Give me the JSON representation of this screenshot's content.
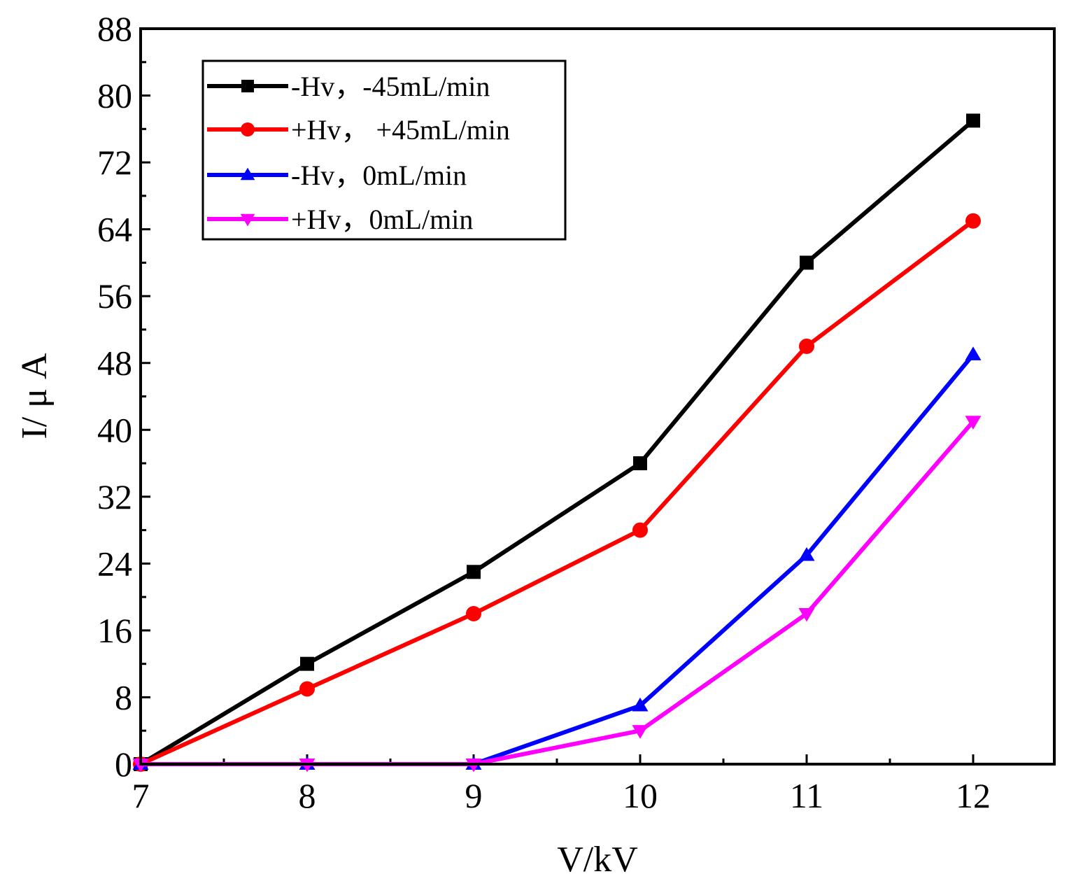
{
  "chart_data": {
    "type": "line",
    "title": "",
    "xlabel": "V/kV",
    "ylabel": "I/ μ A",
    "xlim": [
      7,
      12.5
    ],
    "ylim": [
      0,
      88
    ],
    "x_ticks": [
      7,
      8,
      9,
      10,
      11,
      12
    ],
    "y_ticks": [
      0,
      8,
      16,
      24,
      32,
      40,
      48,
      56,
      64,
      72,
      80,
      88
    ],
    "grid": false,
    "legend_position": "top-left",
    "x": [
      7,
      8,
      9,
      10,
      11,
      12
    ],
    "series": [
      {
        "name": "-Hv，-45mL/min",
        "color": "#000000",
        "marker": "square",
        "values": [
          0,
          12,
          23,
          36,
          60,
          77
        ]
      },
      {
        "name": "+Hv，  +45mL/min",
        "color": "#ff0000",
        "marker": "circle",
        "values": [
          0,
          9,
          18,
          28,
          50,
          65
        ]
      },
      {
        "name": "-Hv，0mL/min",
        "color": "#0000ff",
        "marker": "triangle-up",
        "values": [
          0,
          0,
          0,
          7,
          25,
          49
        ]
      },
      {
        "name": "+Hv，0mL/min",
        "color": "#ff00ff",
        "marker": "triangle-down",
        "values": [
          0,
          0,
          0,
          4,
          18,
          41
        ]
      }
    ]
  }
}
